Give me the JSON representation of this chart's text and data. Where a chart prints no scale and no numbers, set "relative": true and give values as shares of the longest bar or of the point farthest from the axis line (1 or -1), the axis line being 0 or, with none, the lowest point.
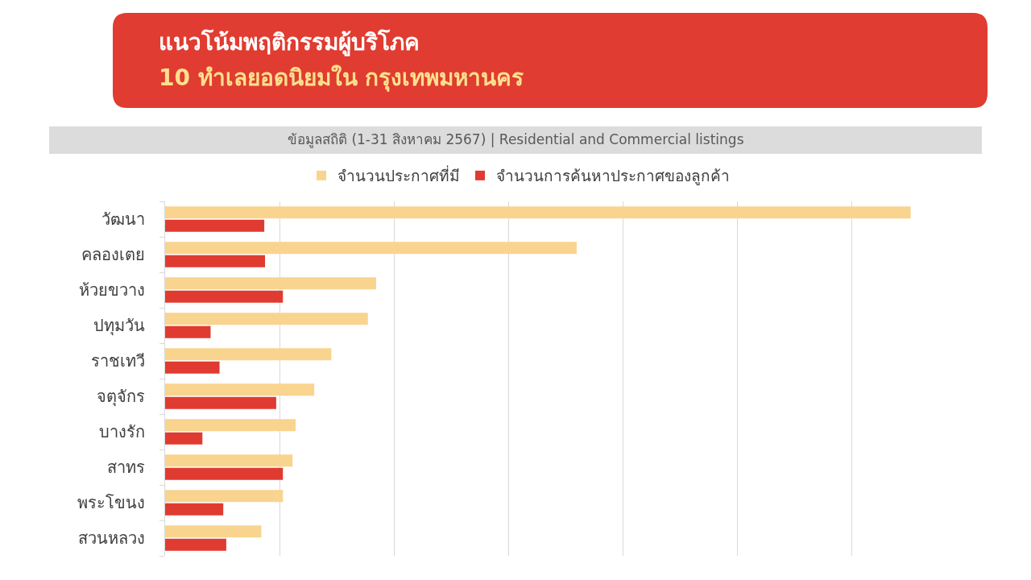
{
  "chart_data": {
    "type": "bar",
    "orientation": "horizontal",
    "relative": true,
    "title": "แนวโน้มพฤติกรรมผู้บริโภค",
    "subtitle": "10 ทำเลยอดนิยมใน กรุงเทพมหานคร",
    "annotations": [
      "ข้อมูลสถิติ (1-31 สิงหาคม 2567) | Residential and Commercial listings"
    ],
    "categories": [
      "วัฒนา",
      "คลองเตย",
      "ห้วยขวาง",
      "ปทุมวัน",
      "ราชเทวี",
      "จตุจักร",
      "บางรัก",
      "สาทร",
      "พระโขนง",
      "สวนหลวง"
    ],
    "series": [
      {
        "name": "จำนวนประกาศที่มี",
        "color": "#f9d48e",
        "values": [
          1,
          0.552,
          0.283,
          0.272,
          0.223,
          0.2,
          0.175,
          0.171,
          0.158,
          0.129
        ]
      },
      {
        "name": "จำนวนการค้นหาประกาศของลูกค้า",
        "color": "#e03b31",
        "values": [
          0.133,
          0.134,
          0.158,
          0.061,
          0.073,
          0.149,
          0.05,
          0.158,
          0.078,
          0.082
        ]
      }
    ],
    "grid": "x",
    "legend": "top"
  }
}
